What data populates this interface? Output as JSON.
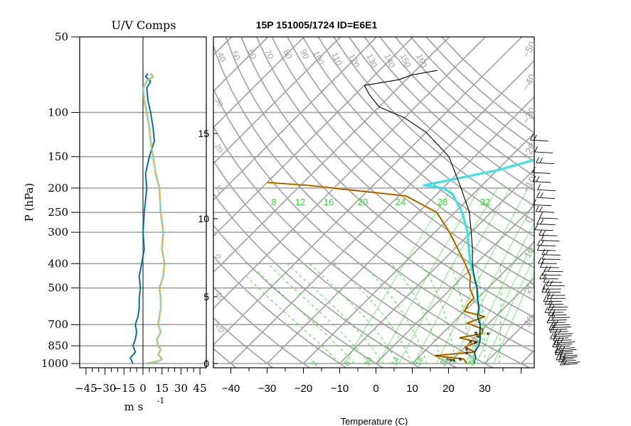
{
  "title": "15P 151005/1724 ID=E6E1",
  "left_panel": {
    "title": "U/V Comps",
    "xlabel": "m s",
    "xlabel_exp": "-1",
    "ylabel": "P (hPa)"
  },
  "main_panel": {
    "xlabel": "Temperature (C)"
  },
  "colors": {
    "grid": "#a0a0a0",
    "temperature": "#000000",
    "dewpoint": "#f5a623",
    "cyan": "#3fe0e8",
    "green": "#33dd33",
    "u_comp": "#1a2e8c",
    "v_comp": "#f5a623",
    "uv_highlight": "#3fe0e8"
  },
  "chart_data": [
    {
      "type": "line",
      "name": "U/V Comps",
      "x_unit": "m s-1",
      "y_scale": "log pressure",
      "xlim": [
        -50,
        50
      ],
      "ylim": [
        1000,
        50
      ],
      "x_ticks": [
        -45,
        -30,
        -15,
        0,
        15,
        30,
        45
      ],
      "x_tick_labels": [
        "−45",
        "−30",
        "−15",
        "0",
        "15",
        "30",
        "45"
      ],
      "y_ticks": [
        1000,
        850,
        700,
        500,
        400,
        300,
        250,
        200,
        150,
        100,
        50
      ],
      "series": [
        {
          "color_key": "u_comp",
          "points": [
            [
              -8,
              1000
            ],
            [
              -10,
              950
            ],
            [
              -6,
              900
            ],
            [
              -8,
              850
            ],
            [
              -6,
              800
            ],
            [
              -5,
              750
            ],
            [
              -6,
              700
            ],
            [
              -4,
              650
            ],
            [
              -3,
              600
            ],
            [
              -3,
              550
            ],
            [
              -2,
              500
            ],
            [
              -3,
              450
            ],
            [
              -1,
              400
            ],
            [
              1,
              350
            ],
            [
              0,
              300
            ],
            [
              1,
              250
            ],
            [
              3,
              200
            ],
            [
              2,
              175
            ],
            [
              5,
              150
            ],
            [
              9,
              130
            ],
            [
              8,
              115
            ],
            [
              6,
              100
            ],
            [
              4,
              90
            ],
            [
              3,
              80
            ],
            [
              6,
              75
            ],
            [
              2,
              72
            ],
            [
              4,
              70
            ]
          ]
        },
        {
          "color_key": "v_comp",
          "points": [
            [
              3,
              1000
            ],
            [
              12,
              980
            ],
            [
              15,
              960
            ],
            [
              12,
              920
            ],
            [
              14,
              880
            ],
            [
              12,
              850
            ],
            [
              11,
              800
            ],
            [
              14,
              750
            ],
            [
              12,
              700
            ],
            [
              13,
              650
            ],
            [
              14,
              600
            ],
            [
              14,
              550
            ],
            [
              13,
              500
            ],
            [
              16,
              450
            ],
            [
              17,
              400
            ],
            [
              15,
              350
            ],
            [
              16,
              300
            ],
            [
              14,
              250
            ],
            [
              13,
              200
            ],
            [
              10,
              175
            ],
            [
              8,
              150
            ],
            [
              6,
              130
            ],
            [
              5,
              115
            ],
            [
              3,
              100
            ],
            [
              1,
              90
            ],
            [
              0,
              80
            ],
            [
              3,
              75
            ],
            [
              8,
              72
            ],
            [
              6,
              70
            ]
          ]
        }
      ]
    },
    {
      "type": "line",
      "name": "Skew-T log-P",
      "x_unit": "Temperature (C)",
      "xlim": [
        -43,
        42
      ],
      "ylim": [
        1000,
        50
      ],
      "x_ticks": [
        -40,
        -30,
        -20,
        -10,
        0,
        10,
        20,
        30
      ],
      "x_tick_labels": [
        "−40",
        "−30",
        "−20",
        "−10",
        "0",
        "10",
        "20",
        "30"
      ],
      "y_ticks": [
        1000,
        850,
        700,
        500,
        400,
        300,
        250,
        200,
        150,
        100,
        50
      ],
      "height_axis_km": [
        0,
        5,
        10,
        15
      ],
      "isotherm_labels_top": [
        "40",
        "50",
        "60",
        "70",
        "80",
        "90",
        "100",
        "110",
        "120",
        "130",
        "140",
        "150",
        "160"
      ],
      "dry_adiabat_labels": [
        "−50",
        "−40",
        "−30",
        "−20",
        "−10",
        "0",
        "10",
        "20",
        "30"
      ],
      "mixing_ratio_labels": [
        "8",
        "12",
        "16",
        "20",
        "24",
        "28",
        "32"
      ],
      "moist_adiabat_labels": [
        "2",
        "6",
        "10",
        "14",
        "18",
        "22",
        "26"
      ],
      "series": [
        {
          "name_key": "temperature",
          "color_key": "temperature",
          "points_screen": "temperature"
        },
        {
          "name_key": "dewpoint",
          "color_key": "dewpoint"
        },
        {
          "name_key": "cyan",
          "color_key": "cyan"
        }
      ]
    }
  ]
}
